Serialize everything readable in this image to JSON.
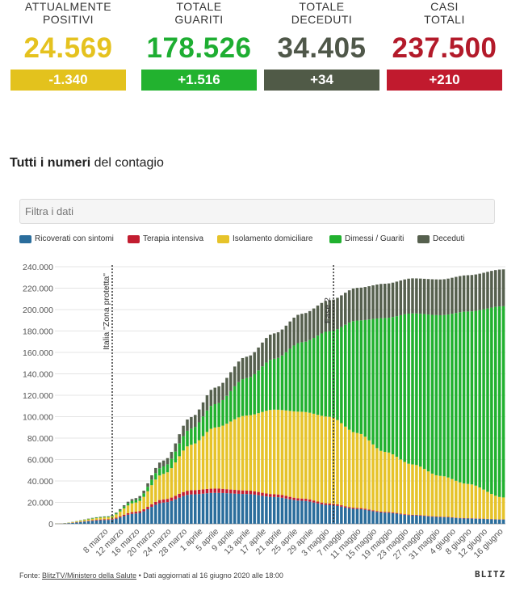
{
  "stats": [
    {
      "label_line1": "ATTUALMENTE",
      "label_line2": "POSITIVI",
      "value": "24.569",
      "delta": "-1.340",
      "color": "#e5c21f",
      "delta_color": "#e3c21d"
    },
    {
      "label_line1": "TOTALE",
      "label_line2": "GUARITI",
      "value": "178.526",
      "delta": "+1.516",
      "color": "#1eae32",
      "delta_color": "#22b22f"
    },
    {
      "label_line1": "TOTALE",
      "label_line2": "DECEDUTI",
      "value": "34.405",
      "delta": "+34",
      "color": "#4f5749",
      "delta_color": "#505a47"
    },
    {
      "label_line1": "CASI",
      "label_line2": "TOTALI",
      "value": "237.500",
      "delta": "+210",
      "color": "#b31a2a",
      "delta_color": "#c11a2e"
    }
  ],
  "heading": {
    "bold": "Tutti i numeri",
    "rest": " del contagio"
  },
  "filter": {
    "placeholder": "Filtra i dati"
  },
  "legend": [
    {
      "label": "Ricoverati con sintomi",
      "color": "#2a6d9c"
    },
    {
      "label": "Terapia intensiva",
      "color": "#c21d30"
    },
    {
      "label": "Isolamento domiciliare",
      "color": "#e6c32a"
    },
    {
      "label": "Dimessi / Guariti",
      "color": "#21b12f"
    },
    {
      "label": "Deceduti",
      "color": "#56604e"
    }
  ],
  "footer": {
    "source_label": "Fonte: ",
    "source": "BlitzTV/Ministero della Salute",
    "rest": " • Dati aggiornati al 16 giugno 2020 alle 18:00"
  },
  "brand": "BLITZ",
  "chart_data": {
    "type": "bar",
    "stacked": true,
    "x_start": "2020-02-24",
    "ylim": [
      0,
      240000
    ],
    "y_ticks": [
      0,
      20000,
      40000,
      60000,
      80000,
      100000,
      120000,
      140000,
      160000,
      180000,
      200000,
      220000,
      240000
    ],
    "y_tick_labels": [
      "0",
      "20.000",
      "40.000",
      "60.000",
      "80.000",
      "100.000",
      "120.000",
      "140.000",
      "160.000",
      "180.000",
      "200.000",
      "220.000",
      "240.000"
    ],
    "x_tick_labels": [
      "8 marzo",
      "12 marzo",
      "16 marzo",
      "20 marzo",
      "24 marzo",
      "28 marzo",
      "1 aprile",
      "5 aprile",
      "9 aprile",
      "13 aprile",
      "17 aprile",
      "21 aprile",
      "25 aprile",
      "29 aprile",
      "3 maggio",
      "7 maggio",
      "11 maggio",
      "15 maggio",
      "19 maggio",
      "23 maggio",
      "27 maggio",
      "31 maggio",
      "4 giugno",
      "8 giugno",
      "12 giugno",
      "16 giugno"
    ],
    "grid": true,
    "legend_position": "top",
    "annotations": [
      {
        "label": "Italia \"Zona protetta\"",
        "at": "9 marzo"
      },
      {
        "label": "Fase 2",
        "at": "4 maggio"
      }
    ],
    "series_keypoints": {
      "note": "approximate stacked component values at selected days",
      "days": [
        "2020-02-24",
        "2020-03-08",
        "2020-03-15",
        "2020-03-22",
        "2020-03-29",
        "2020-04-04",
        "2020-04-12",
        "2020-04-19",
        "2020-04-26",
        "2020-05-03",
        "2020-05-10",
        "2020-05-17",
        "2020-05-24",
        "2020-05-31",
        "2020-06-07",
        "2020-06-16"
      ],
      "series": [
        {
          "name": "Ricoverati con sintomi",
          "values": [
            100,
            3600,
            9600,
            19800,
            27400,
            28900,
            27800,
            25000,
            21500,
            17400,
            13800,
            10400,
            7900,
            6300,
            4900,
            4000
          ]
        },
        {
          "name": "Terapia intensiva",
          "values": [
            30,
            650,
            1670,
            3000,
            3900,
            4000,
            3300,
            2600,
            2100,
            1500,
            1000,
            760,
            550,
            430,
            300,
            200
          ]
        },
        {
          "name": "Isolamento domiciliare",
          "values": [
            100,
            1800,
            8600,
            23800,
            42500,
            57000,
            70000,
            79000,
            81000,
            81000,
            70000,
            56000,
            47000,
            38000,
            32000,
            20400
          ]
        },
        {
          "name": "Dimessi / Guariti",
          "values": [
            10,
            600,
            2300,
            7000,
            15000,
            21800,
            35000,
            47500,
            64900,
            79900,
            105000,
            125000,
            141000,
            150000,
            161000,
            178526
          ]
        },
        {
          "name": "Deceduti",
          "values": [
            7,
            370,
            1800,
            5500,
            10800,
            15400,
            19900,
            23700,
            26600,
            28900,
            30500,
            32000,
            32700,
            33400,
            33900,
            34405
          ]
        }
      ]
    }
  }
}
